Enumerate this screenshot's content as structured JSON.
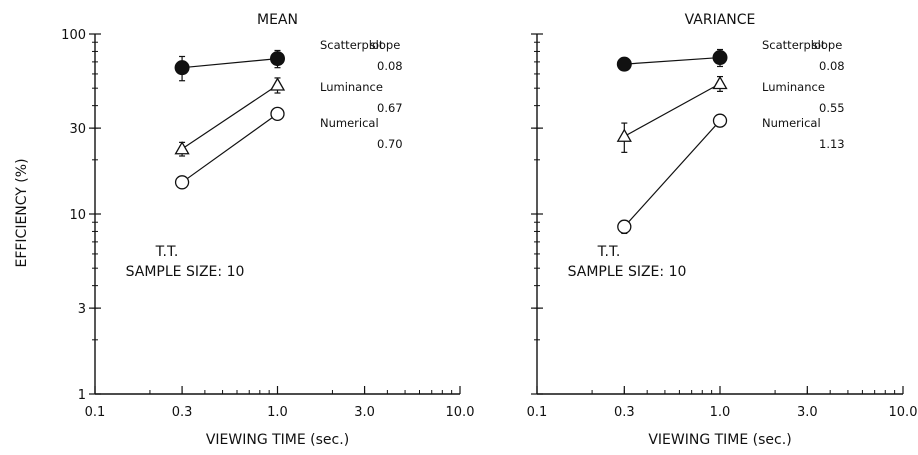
{
  "ylabel": "EFFICIENCY (%)",
  "chart_data": [
    {
      "type": "line",
      "title": "MEAN",
      "xlabel": "VIEWING TIME (sec.)",
      "xscale": "log",
      "yscale": "log",
      "xlim": [
        0.1,
        10.0
      ],
      "ylim": [
        1,
        100
      ],
      "x_ticks": [
        "0.1",
        "0.3",
        "1.0",
        "3.0",
        "10.0"
      ],
      "y_ticks": [
        "1",
        "3",
        "10",
        "30",
        "100"
      ],
      "x": [
        0.3,
        1.0
      ],
      "series": [
        {
          "name": "Scatterplot",
          "marker": "filled-circle",
          "values": [
            65,
            73
          ],
          "err": [
            10,
            8
          ],
          "slope": "0.08"
        },
        {
          "name": "Luminance",
          "marker": "open-triangle",
          "values": [
            23,
            52
          ],
          "err": [
            2,
            5
          ],
          "slope": "0.67"
        },
        {
          "name": "Numerical",
          "marker": "open-circle",
          "values": [
            15,
            36
          ],
          "err": [
            1,
            2
          ],
          "slope": "0.70"
        }
      ],
      "legend_header": "slope",
      "annotation": [
        "T.T.",
        "SAMPLE SIZE: 10"
      ],
      "grid": false
    },
    {
      "type": "line",
      "title": "VARIANCE",
      "xlabel": "VIEWING TIME (sec.)",
      "xscale": "log",
      "yscale": "log",
      "xlim": [
        0.1,
        10.0
      ],
      "ylim": [
        1,
        100
      ],
      "x_ticks": [
        "0.1",
        "0.3",
        "1.0",
        "3.0",
        "10.0"
      ],
      "y_ticks": [
        "1",
        "3",
        "10",
        "30",
        "100"
      ],
      "x": [
        0.3,
        1.0
      ],
      "series": [
        {
          "name": "Scatterplot",
          "marker": "filled-circle",
          "values": [
            68,
            74
          ],
          "err": [
            3,
            8
          ],
          "slope": "0.08"
        },
        {
          "name": "Luminance",
          "marker": "open-triangle",
          "values": [
            27,
            53
          ],
          "err": [
            5,
            5
          ],
          "slope": "0.55"
        },
        {
          "name": "Numerical",
          "marker": "open-circle",
          "values": [
            8.5,
            33
          ],
          "err": [
            0.7,
            2
          ],
          "slope": "1.13"
        }
      ],
      "legend_header": "slope",
      "annotation": [
        "T.T.",
        "SAMPLE SIZE: 10"
      ],
      "grid": false
    }
  ]
}
